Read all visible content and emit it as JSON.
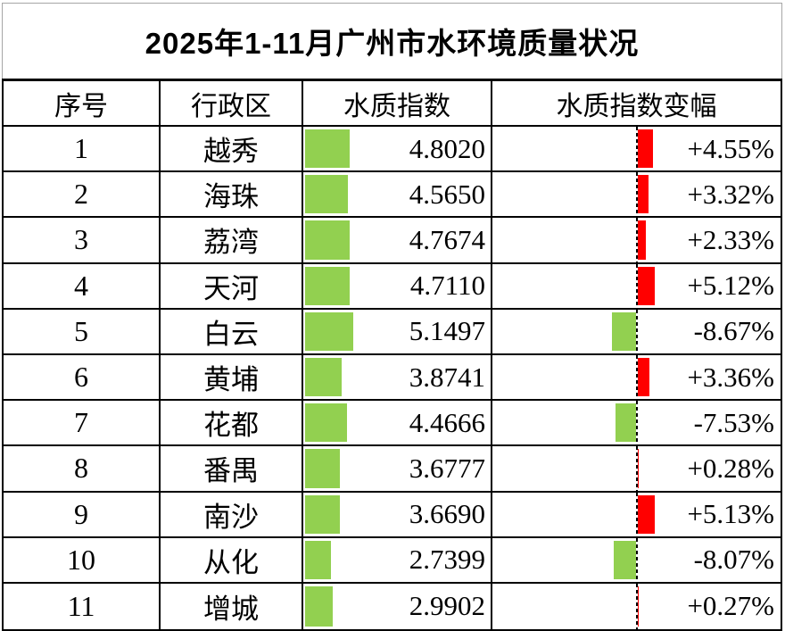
{
  "title": "2025年1-11月广州市水环境质量状况",
  "table": {
    "headers": [
      "序号",
      "行政区",
      "水质指数",
      "水质指数变幅"
    ],
    "rows": [
      {
        "no": "1",
        "district": "越秀",
        "index": "4.8020",
        "index_value": 4.802,
        "change": "+4.55%",
        "change_value": 4.55
      },
      {
        "no": "2",
        "district": "海珠",
        "index": "4.5650",
        "index_value": 4.565,
        "change": "+3.32%",
        "change_value": 3.32
      },
      {
        "no": "3",
        "district": "荔湾",
        "index": "4.7674",
        "index_value": 4.7674,
        "change": "+2.33%",
        "change_value": 2.33
      },
      {
        "no": "4",
        "district": "天河",
        "index": "4.7110",
        "index_value": 4.711,
        "change": "+5.12%",
        "change_value": 5.12
      },
      {
        "no": "5",
        "district": "白云",
        "index": "5.1497",
        "index_value": 5.1497,
        "change": "-8.67%",
        "change_value": -8.67
      },
      {
        "no": "6",
        "district": "黄埔",
        "index": "3.8741",
        "index_value": 3.8741,
        "change": "+3.36%",
        "change_value": 3.36
      },
      {
        "no": "7",
        "district": "花都",
        "index": "4.4666",
        "index_value": 4.4666,
        "change": "-7.53%",
        "change_value": -7.53
      },
      {
        "no": "8",
        "district": "番禺",
        "index": "3.6777",
        "index_value": 3.6777,
        "change": "+0.28%",
        "change_value": 0.28
      },
      {
        "no": "9",
        "district": "南沙",
        "index": "3.6690",
        "index_value": 3.669,
        "change": "+5.13%",
        "change_value": 5.13
      },
      {
        "no": "10",
        "district": "从化",
        "index": "2.7399",
        "index_value": 2.7399,
        "change": "-8.07%",
        "change_value": -8.07
      },
      {
        "no": "11",
        "district": "增城",
        "index": "2.9902",
        "index_value": 2.9902,
        "change": "+0.27%",
        "change_value": 0.27
      }
    ]
  },
  "colors": {
    "index_bar": "#92d050",
    "positive_change_bar": "#ff0000",
    "negative_change_bar": "#92d050",
    "grid_border": "#000000",
    "title_border": "#a6a6a6",
    "axis": "#000000"
  },
  "chart_data": {
    "type": "table",
    "title": "2025年1-11月广州市水环境质量状况",
    "columns": [
      "序号",
      "行政区",
      "水质指数",
      "水质指数变幅"
    ],
    "categories": [
      "越秀",
      "海珠",
      "荔湾",
      "天河",
      "白云",
      "黄埔",
      "花都",
      "番禺",
      "南沙",
      "从化",
      "增城"
    ],
    "series": [
      {
        "name": "水质指数",
        "values": [
          4.802,
          4.565,
          4.7674,
          4.711,
          5.1497,
          3.8741,
          4.4666,
          3.6777,
          3.669,
          2.7399,
          2.9902
        ]
      },
      {
        "name": "水质指数变幅(%)",
        "values": [
          4.55,
          3.32,
          2.33,
          5.12,
          -8.67,
          3.36,
          -7.53,
          0.28,
          5.13,
          -8.07,
          0.27
        ]
      }
    ],
    "layout_hints": {
      "in_cell_data_bars": true,
      "index_bars": "green solid bars from left edge, length proportional to value",
      "change_bars": "dashed vertical axis at ~49.7% of cell; positive values red bars to the right, negative values green bars to the left",
      "grid": true
    }
  }
}
